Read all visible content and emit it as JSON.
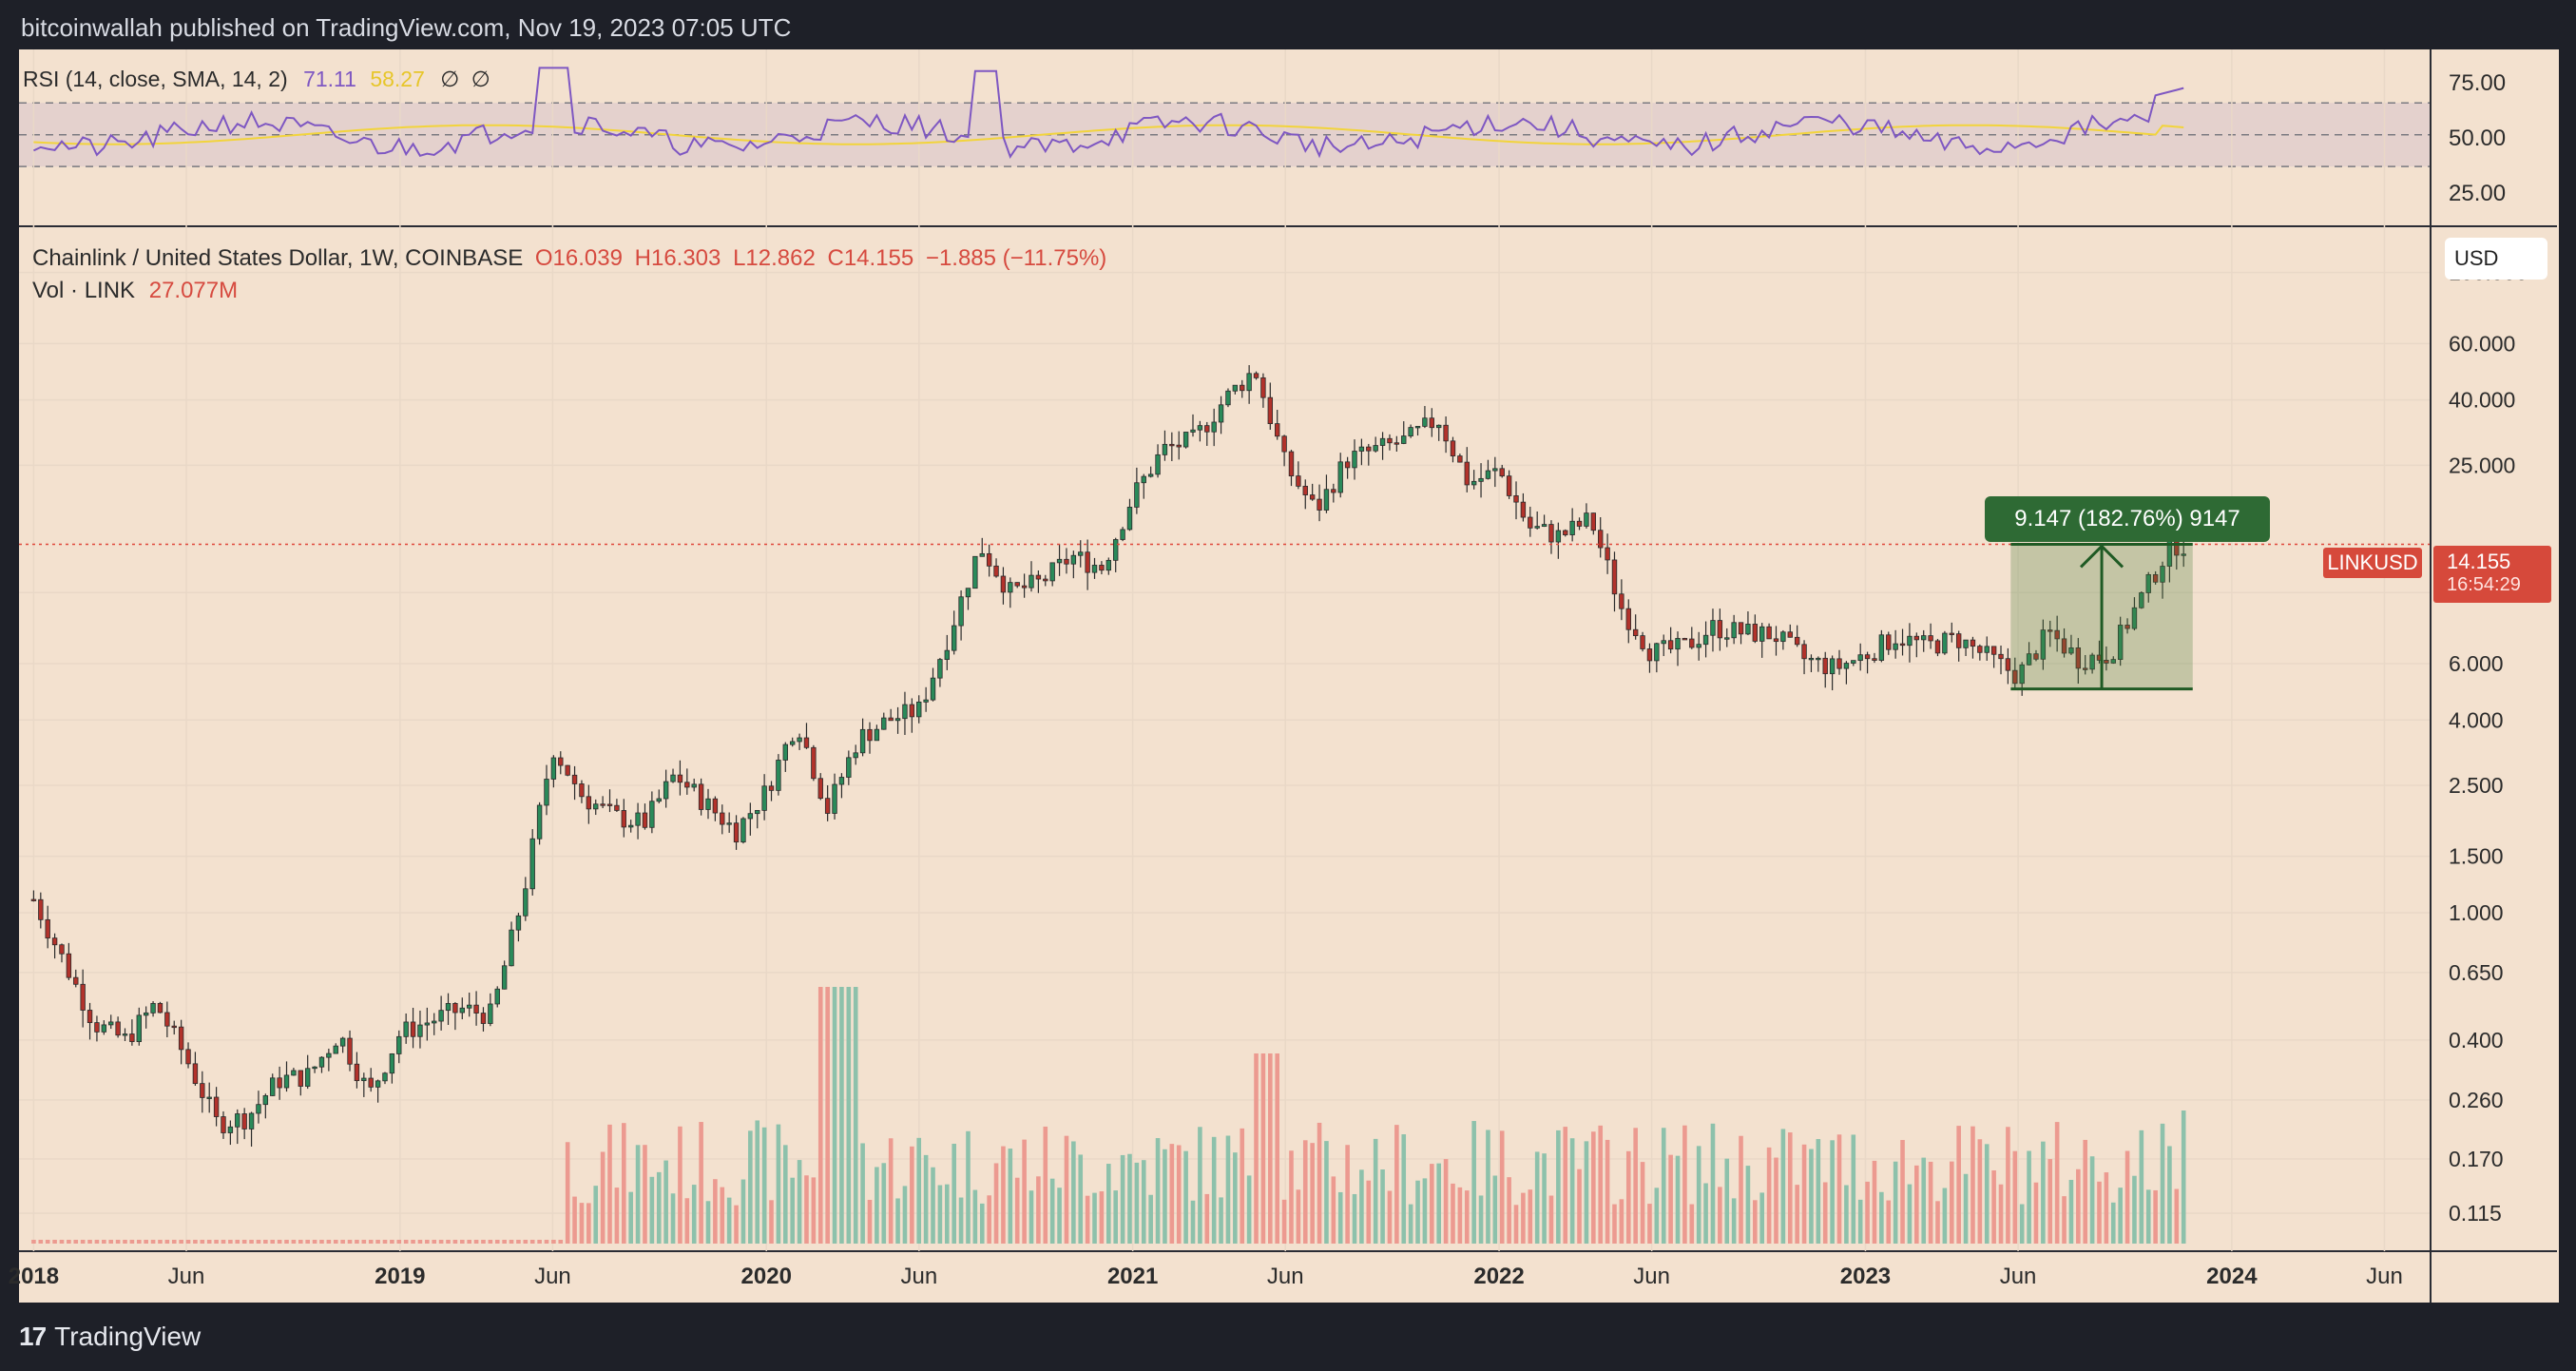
{
  "header": {
    "publisher_line": "bitcoinwallah published on TradingView.com, Nov 19, 2023 07:05 UTC"
  },
  "rsi_panel": {
    "label": "RSI (14, close, SMA, 14, 2)",
    "rsi_value": "71.11",
    "sma_value": "58.27",
    "icons": [
      "∅",
      "∅"
    ],
    "ticks": [
      "75.00",
      "50.00",
      "25.00"
    ],
    "colors": {
      "rsi": "#7e57c2",
      "sma": "#f2d43b",
      "band": "#d8c8d4"
    }
  },
  "legend": {
    "symbol": "Chainlink / United States Dollar, 1W, COINBASE",
    "open": "O16.039",
    "high": "H16.303",
    "low": "L12.862",
    "close": "C14.155",
    "change": "−1.885 (−11.75%)",
    "volume_label": "Vol · LINK",
    "volume_value": "27.077M"
  },
  "currency_button": "USD",
  "price_label": {
    "symbol": "LINKUSD",
    "price": "14.155",
    "countdown": "16:54:29"
  },
  "measure_tool": {
    "label": "9.147 (182.76%) 9147"
  },
  "footer": {
    "brand": "TradingView"
  },
  "chart_data": {
    "type": "candlestick",
    "title": "",
    "y_scale": "log",
    "ylim": [
      0.09,
      120
    ],
    "y_ticks": [
      "100.000",
      "60.000",
      "40.000",
      "25.000",
      "14.155",
      "10.000",
      "6.000",
      "4.000",
      "2.500",
      "1.500",
      "1.000",
      "0.650",
      "0.400",
      "0.260",
      "0.170",
      "0.115"
    ],
    "x_ticks": [
      "2018",
      "Jun",
      "2019",
      "Jun",
      "2020",
      "Jun",
      "2021",
      "Jun",
      "2022",
      "Jun",
      "2023",
      "Jun",
      "2024",
      "Jun"
    ],
    "x_tick_dates": [
      "2018-01",
      "2018-06",
      "2019-01",
      "2019-06",
      "2020-01",
      "2020-06",
      "2021-01",
      "2021-06",
      "2022-01",
      "2022-06",
      "2023-01",
      "2023-06",
      "2024-01",
      "2024-06"
    ],
    "price_path": [
      [
        "2018-01",
        1.1
      ],
      [
        "2018-02",
        0.7
      ],
      [
        "2018-03",
        0.45
      ],
      [
        "2018-04",
        0.4
      ],
      [
        "2018-05",
        0.52
      ],
      [
        "2018-06",
        0.35
      ],
      [
        "2018-07",
        0.22
      ],
      [
        "2018-08",
        0.23
      ],
      [
        "2018-09",
        0.3
      ],
      [
        "2018-10",
        0.31
      ],
      [
        "2018-11",
        0.42
      ],
      [
        "2018-12",
        0.27
      ],
      [
        "2019-01",
        0.42
      ],
      [
        "2019-02",
        0.46
      ],
      [
        "2019-03",
        0.5
      ],
      [
        "2019-04",
        0.48
      ],
      [
        "2019-05",
        1.1
      ],
      [
        "2019-06",
        3.3
      ],
      [
        "2019-07",
        2.3
      ],
      [
        "2019-08",
        2.0
      ],
      [
        "2019-09",
        1.9
      ],
      [
        "2019-10",
        2.7
      ],
      [
        "2019-11",
        2.2
      ],
      [
        "2019-12",
        1.8
      ],
      [
        "2020-01",
        2.4
      ],
      [
        "2020-02",
        4.0
      ],
      [
        "2020-03",
        2.1
      ],
      [
        "2020-04",
        3.5
      ],
      [
        "2020-05",
        4.0
      ],
      [
        "2020-06",
        4.3
      ],
      [
        "2020-07",
        7.5
      ],
      [
        "2020-08",
        14.0
      ],
      [
        "2020-09",
        10.0
      ],
      [
        "2020-10",
        10.8
      ],
      [
        "2020-11",
        13.0
      ],
      [
        "2020-12",
        12.0
      ],
      [
        "2021-01",
        20.0
      ],
      [
        "2021-02",
        28.0
      ],
      [
        "2021-03",
        30.0
      ],
      [
        "2021-04",
        40.0
      ],
      [
        "2021-05",
        50.0
      ],
      [
        "2021-06",
        25.0
      ],
      [
        "2021-07",
        18.0
      ],
      [
        "2021-08",
        26.0
      ],
      [
        "2021-09",
        28.0
      ],
      [
        "2021-10",
        30.0
      ],
      [
        "2021-11",
        35.0
      ],
      [
        "2021-12",
        22.0
      ],
      [
        "2022-01",
        24.0
      ],
      [
        "2022-02",
        16.0
      ],
      [
        "2022-03",
        15.0
      ],
      [
        "2022-04",
        17.0
      ],
      [
        "2022-05",
        9.0
      ],
      [
        "2022-06",
        6.5
      ],
      [
        "2022-07",
        6.7
      ],
      [
        "2022-08",
        7.8
      ],
      [
        "2022-09",
        7.5
      ],
      [
        "2022-10",
        7.4
      ],
      [
        "2022-11",
        6.2
      ],
      [
        "2022-12",
        5.8
      ],
      [
        "2023-01",
        6.4
      ],
      [
        "2023-02",
        7.3
      ],
      [
        "2023-03",
        6.8
      ],
      [
        "2023-04",
        7.2
      ],
      [
        "2023-05",
        6.3
      ],
      [
        "2023-06",
        5.5
      ],
      [
        "2023-07",
        7.5
      ],
      [
        "2023-08",
        6.2
      ],
      [
        "2023-09",
        6.4
      ],
      [
        "2023-10",
        9.5
      ],
      [
        "2023-11",
        14.16
      ]
    ],
    "volume_note": "volume bars shown only from 2019-06 onward",
    "measure": {
      "from": 5.0,
      "to": 14.16,
      "start": "2023-06",
      "end": "2023-11"
    }
  }
}
